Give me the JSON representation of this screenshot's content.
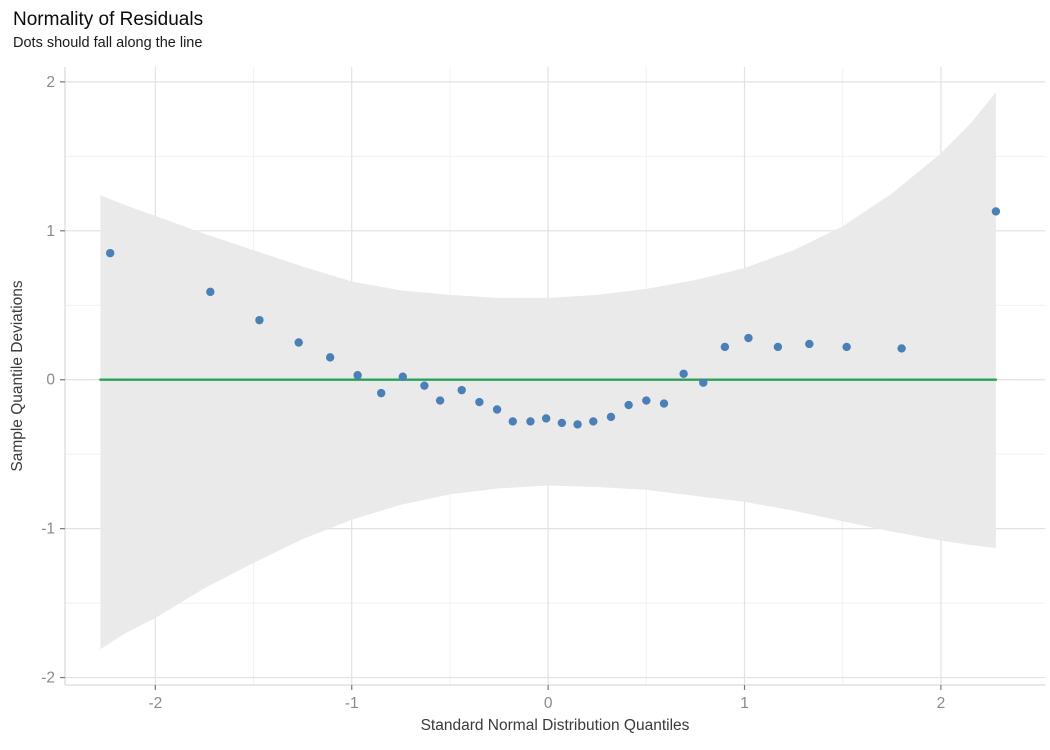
{
  "chart_data": {
    "type": "scatter",
    "title": "Normality of Residuals",
    "subtitle": "Dots should fall along the line",
    "xlabel": "Standard Normal Distribution Quantiles",
    "ylabel": "Sample Quantile Deviations",
    "xlim": [
      -2.46,
      2.53
    ],
    "ylim": [
      -2.05,
      2.1
    ],
    "x_ticks": [
      -2,
      -1,
      0,
      1,
      2
    ],
    "y_ticks": [
      -2,
      -1,
      0,
      1,
      2
    ],
    "x_minor_ticks": [
      -1.5,
      -0.5,
      0.5,
      1.5
    ],
    "y_minor_ticks": [
      -1.5,
      -0.5,
      0.5,
      1.5
    ],
    "grid": true,
    "legend": "none",
    "reference_line": {
      "y": 0,
      "x_range": [
        -2.28,
        2.28
      ]
    },
    "points": [
      [
        -2.23,
        0.85
      ],
      [
        -1.72,
        0.59
      ],
      [
        -1.47,
        0.4
      ],
      [
        -1.27,
        0.25
      ],
      [
        -1.11,
        0.15
      ],
      [
        -0.97,
        0.03
      ],
      [
        -0.85,
        -0.09
      ],
      [
        -0.74,
        0.02
      ],
      [
        -0.63,
        -0.04
      ],
      [
        -0.55,
        -0.14
      ],
      [
        -0.44,
        -0.07
      ],
      [
        -0.35,
        -0.15
      ],
      [
        -0.26,
        -0.2
      ],
      [
        -0.18,
        -0.28
      ],
      [
        -0.09,
        -0.28
      ],
      [
        -0.01,
        -0.26
      ],
      [
        0.07,
        -0.29
      ],
      [
        0.15,
        -0.3
      ],
      [
        0.23,
        -0.28
      ],
      [
        0.32,
        -0.25
      ],
      [
        0.41,
        -0.17
      ],
      [
        0.5,
        -0.14
      ],
      [
        0.59,
        -0.16
      ],
      [
        0.69,
        0.04
      ],
      [
        0.79,
        -0.02
      ],
      [
        0.9,
        0.22
      ],
      [
        1.02,
        0.28
      ],
      [
        1.17,
        0.22
      ],
      [
        1.33,
        0.24
      ],
      [
        1.52,
        0.22
      ],
      [
        1.8,
        0.21
      ],
      [
        2.28,
        1.13
      ]
    ],
    "confidence_band": {
      "x": [
        -2.28,
        -2.15,
        -2.0,
        -1.75,
        -1.5,
        -1.25,
        -1.0,
        -0.75,
        -0.5,
        -0.25,
        0.0,
        0.25,
        0.5,
        0.75,
        1.0,
        1.25,
        1.5,
        1.75,
        2.0,
        2.15,
        2.28
      ],
      "upper": [
        1.24,
        1.17,
        1.1,
        0.98,
        0.87,
        0.76,
        0.66,
        0.6,
        0.57,
        0.55,
        0.55,
        0.57,
        0.61,
        0.67,
        0.75,
        0.87,
        1.03,
        1.25,
        1.52,
        1.72,
        1.93
      ],
      "lower": [
        -1.81,
        -1.7,
        -1.6,
        -1.4,
        -1.23,
        -1.07,
        -0.94,
        -0.84,
        -0.77,
        -0.73,
        -0.71,
        -0.72,
        -0.74,
        -0.78,
        -0.82,
        -0.88,
        -0.95,
        -1.02,
        -1.08,
        -1.11,
        -1.13
      ]
    },
    "colors": {
      "point": "#4a80b5",
      "reference_line": "#2aa05a",
      "band": "#e9e9e9",
      "grid_major": "#e2e2e2",
      "grid_minor": "#f1f1f1",
      "axis": "#d2d2d2",
      "tick": "#7a7a7a",
      "tick_label": "#8a8a8a"
    }
  }
}
